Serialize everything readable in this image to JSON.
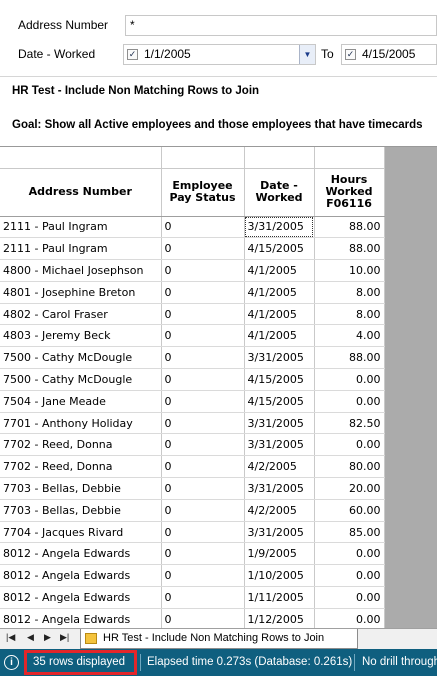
{
  "filters": {
    "address_label": "Address Number",
    "address_value": "*",
    "date_label": "Date - Worked",
    "date_from": "1/1/2005",
    "to_label": "To",
    "date_to": "4/15/2005"
  },
  "description": {
    "title": "HR Test - Include Non Matching Rows to Join",
    "goal": "Goal:  Show all Active employees and those employees that have timecards"
  },
  "grid": {
    "headers": {
      "address": "Address Number",
      "pay_status": "Employee Pay Status",
      "date_worked": "Date - Worked",
      "hours": "Hours Worked F06116"
    },
    "rows": [
      {
        "address": "2111 - Paul Ingram",
        "status": "0",
        "date": "3/31/2005",
        "hours": "88.00"
      },
      {
        "address": "2111 - Paul Ingram",
        "status": "0",
        "date": "4/15/2005",
        "hours": "88.00"
      },
      {
        "address": "4800 - Michael Josephson",
        "status": "0",
        "date": "4/1/2005",
        "hours": "10.00"
      },
      {
        "address": "4801 - Josephine Breton",
        "status": "0",
        "date": "4/1/2005",
        "hours": "8.00"
      },
      {
        "address": "4802 - Carol Fraser",
        "status": "0",
        "date": "4/1/2005",
        "hours": "8.00"
      },
      {
        "address": "4803 - Jeremy Beck",
        "status": "0",
        "date": "4/1/2005",
        "hours": "4.00"
      },
      {
        "address": "7500 - Cathy McDougle",
        "status": "0",
        "date": "3/31/2005",
        "hours": "88.00"
      },
      {
        "address": "7500 - Cathy McDougle",
        "status": "0",
        "date": "4/15/2005",
        "hours": "0.00"
      },
      {
        "address": "7504 - Jane Meade",
        "status": "0",
        "date": "4/15/2005",
        "hours": "0.00"
      },
      {
        "address": "7701 - Anthony Holiday",
        "status": "0",
        "date": "3/31/2005",
        "hours": "82.50"
      },
      {
        "address": "7702 - Reed, Donna",
        "status": "0",
        "date": "3/31/2005",
        "hours": "0.00"
      },
      {
        "address": "7702 - Reed, Donna",
        "status": "0",
        "date": "4/2/2005",
        "hours": "80.00"
      },
      {
        "address": "7703 - Bellas, Debbie",
        "status": "0",
        "date": "3/31/2005",
        "hours": "20.00"
      },
      {
        "address": "7703 - Bellas, Debbie",
        "status": "0",
        "date": "4/2/2005",
        "hours": "60.00"
      },
      {
        "address": "7704 - Jacques Rivard",
        "status": "0",
        "date": "3/31/2005",
        "hours": "85.00"
      },
      {
        "address": "8012 - Angela Edwards",
        "status": "0",
        "date": "1/9/2005",
        "hours": "0.00"
      },
      {
        "address": "8012 - Angela Edwards",
        "status": "0",
        "date": "1/10/2005",
        "hours": "0.00"
      },
      {
        "address": "8012 - Angela Edwards",
        "status": "0",
        "date": "1/11/2005",
        "hours": "0.00"
      },
      {
        "address": "8012 - Angela Edwards",
        "status": "0",
        "date": "1/12/2005",
        "hours": "0.00"
      }
    ]
  },
  "tabbar": {
    "sheet_tab": "HR Test - Include Non Matching Rows to Join"
  },
  "status": {
    "rows_displayed": "35  rows displayed",
    "elapsed": "Elapsed time 0.273s (Database: 0.261s)",
    "drill": "No drill through"
  }
}
